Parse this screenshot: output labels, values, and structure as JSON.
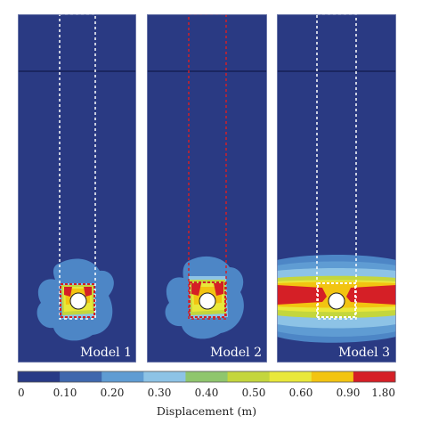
{
  "panels": [
    {
      "label": "Model 1",
      "plume": "white",
      "trench": "red"
    },
    {
      "label": "Model 2",
      "plume": "red",
      "trench": "red"
    },
    {
      "label": "Model 3",
      "plume": "white",
      "trench": "white"
    }
  ],
  "legend": {
    "title": "Displacement (m)",
    "ticks": [
      "0",
      "0.10",
      "0.20",
      "0.30",
      "0.40",
      "0.50",
      "0.60",
      "0.90",
      "1.80"
    ],
    "colors": [
      "#283a86",
      "#3f67ad",
      "#5f9cd3",
      "#8dc3e6",
      "#8fc66d",
      "#c4d63d",
      "#e9e83a",
      "#f2c411",
      "#d51f26"
    ]
  },
  "colors": {
    "background": "#2a3a83",
    "panel_border": "#7f89b4",
    "outline_red": "#d12026",
    "outline_white": "#ffffff"
  }
}
